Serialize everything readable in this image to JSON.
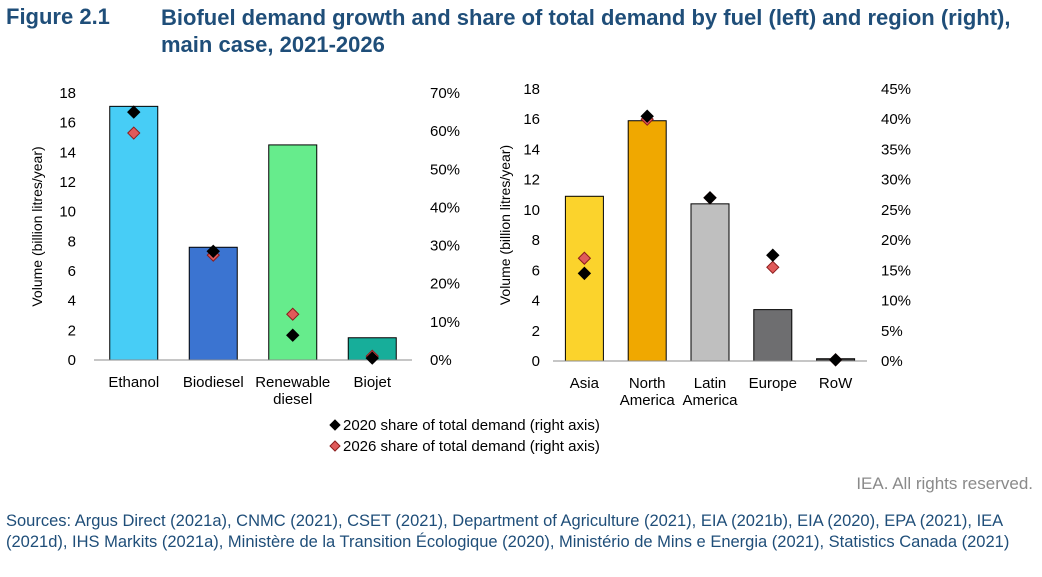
{
  "figure": {
    "label": "Figure 2.1",
    "title": "Biofuel demand growth and share of total demand by fuel (left) and region (right), main case, 2021-2026"
  },
  "legend": {
    "entries": [
      {
        "label": "2020 share of total demand (right axis)",
        "color": "#000000",
        "marker": "diamond"
      },
      {
        "label": "2026 share of total demand (right axis)",
        "color": "#e05a5a",
        "marker": "diamond"
      }
    ]
  },
  "chart_data": [
    {
      "type": "bar",
      "categories": [
        "Ethanol",
        "Biodiesel",
        "Renewable diesel",
        "Biojet"
      ],
      "category_lines": [
        [
          "Ethanol"
        ],
        [
          "Biodiesel"
        ],
        [
          "Renewable",
          "diesel"
        ],
        [
          "Biojet"
        ]
      ],
      "values": [
        17.1,
        7.6,
        14.5,
        1.5
      ],
      "bar_colors": [
        "#47cdf6",
        "#3b74d1",
        "#66ec8c",
        "#17ae9a"
      ],
      "ylabel": "Volume (billion litres/year)",
      "ylim": [
        0,
        18
      ],
      "yticks": [
        "0",
        "2",
        "4",
        "6",
        "8",
        "10",
        "12",
        "14",
        "16",
        "18"
      ],
      "y2lim": [
        0,
        70
      ],
      "y2ticks": [
        "0%",
        "10%",
        "20%",
        "30%",
        "40%",
        "50%",
        "60%",
        "70%"
      ],
      "share_2020": [
        65,
        28.5,
        6.5,
        0.5
      ],
      "share_2026": [
        59.5,
        27.5,
        12,
        1
      ]
    },
    {
      "type": "bar",
      "categories": [
        "Asia",
        "North America",
        "Latin America",
        "Europe",
        "RoW"
      ],
      "category_lines": [
        [
          "Asia"
        ],
        [
          "North",
          "America"
        ],
        [
          "Latin",
          "America"
        ],
        [
          "Europe"
        ],
        [
          "RoW"
        ]
      ],
      "values": [
        10.9,
        15.9,
        10.4,
        3.4,
        0.15
      ],
      "bar_colors": [
        "#fbd32c",
        "#f0a800",
        "#bfbfbf",
        "#6e6e70",
        "#3a3a3a"
      ],
      "ylabel": "Volume (billion litres/year)",
      "ylim": [
        0,
        18
      ],
      "yticks": [
        "0",
        "2",
        "4",
        "6",
        "8",
        "10",
        "12",
        "14",
        "16",
        "18"
      ],
      "y2lim": [
        0,
        45
      ],
      "y2ticks": [
        "0%",
        "5%",
        "10%",
        "15%",
        "20%",
        "25%",
        "30%",
        "35%",
        "40%",
        "45%"
      ],
      "share_2020": [
        14.5,
        40.5,
        27,
        17.5,
        0.2
      ],
      "share_2026": [
        17,
        40,
        27,
        15.5,
        0.2
      ]
    }
  ],
  "footer": {
    "rights": "IEA. All rights reserved.",
    "sources": "Sources: Argus Direct (2021a), CNMC (2021), CSET (2021), Department of Agriculture (2021), EIA (2021b), EIA (2020), EPA (2021), IEA (2021d), IHS Markits (2021a), Ministère de la Transition Écologique (2020), Ministério de Mins e Energia (2021), Statistics Canada (2021)"
  }
}
